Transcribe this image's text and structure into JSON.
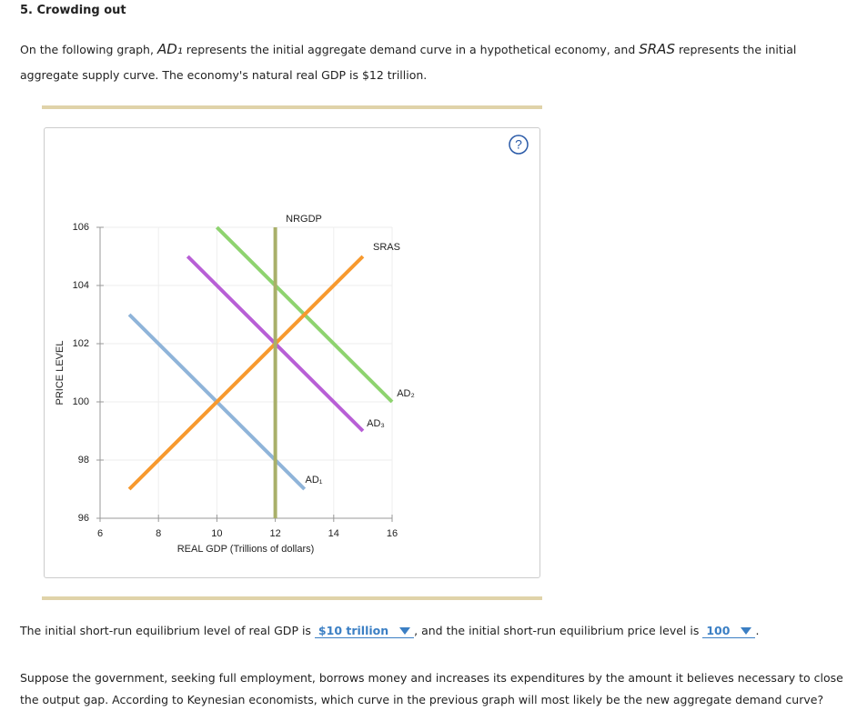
{
  "header": {
    "title": "5. Crowding out"
  },
  "intro": [
    "On the following graph, ",
    "AD₁",
    " represents the initial aggregate demand curve in a hypothetical economy, and ",
    "SRAS",
    " represents the initial aggregate supply curve. The economy's natural real GDP is $12 trillion."
  ],
  "help": "?",
  "chart_data": {
    "type": "line",
    "xlabel": "REAL GDP (Trillions of dollars)",
    "ylabel": "PRICE LEVEL",
    "xlim": [
      6,
      16
    ],
    "xticks": [
      6,
      8,
      10,
      12,
      14,
      16
    ],
    "ylim": [
      96,
      106
    ],
    "yticks": [
      96,
      98,
      100,
      102,
      104,
      106
    ],
    "grid": true,
    "series": [
      {
        "name": "AD₁",
        "color": "#8fb4d9",
        "x": [
          7,
          13
        ],
        "values": [
          103,
          97
        ]
      },
      {
        "name": "AD₃",
        "color": "#b85fd6",
        "x": [
          9,
          15
        ],
        "values": [
          105,
          99
        ]
      },
      {
        "name": "AD₂",
        "color": "#8ed36f",
        "x": [
          10,
          16
        ],
        "values": [
          106,
          100
        ]
      },
      {
        "name": "SRAS",
        "color": "#f7992e",
        "x": [
          7,
          15
        ],
        "values": [
          97,
          105
        ]
      },
      {
        "name": "NRGDP",
        "color": "#a9b06a",
        "x": [
          12,
          12
        ],
        "values": [
          106,
          96
        ]
      }
    ]
  },
  "question": {
    "before": "The initial short-run equilibrium level of real GDP is",
    "answer1": "$10 trillion",
    "middle": ", and the initial short-run equilibrium price level is",
    "answer2": "100",
    "after": "."
  },
  "paragraph": "Suppose the government, seeking full employment, borrows money and increases its expenditures by the amount it believes necessary to close the output gap. According to Keynesian economists, which curve in the previous graph will most likely be the new aggregate demand curve?"
}
